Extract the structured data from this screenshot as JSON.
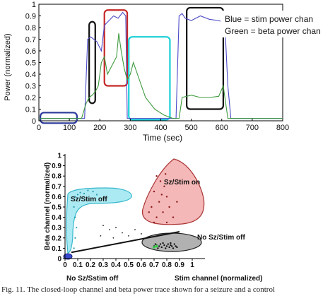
{
  "chart_data": [
    {
      "type": "line",
      "title": "",
      "xlabel": "Time (sec)",
      "ylabel": "Power (normalized)",
      "xlim": [
        0,
        800
      ],
      "ylim": [
        0,
        1
      ],
      "xticks": [
        "0",
        "100",
        "200",
        "300",
        "400",
        "500",
        "600",
        "700",
        "800"
      ],
      "yticks": [
        "0",
        "0.1",
        "0.2",
        "0.3",
        "0.4",
        "0.5",
        "0.6",
        "0.7",
        "0.8",
        "0.9",
        "1"
      ],
      "grid": false,
      "legend_text": [
        "Blue = stim power chan",
        "Green = beta power chan"
      ],
      "colors": {
        "blue": "#4a4ac8",
        "green": "#3f9a3f"
      },
      "series": [
        {
          "color": "blue",
          "x": [
            0,
            150,
            160,
            170,
            190,
            205,
            215,
            230,
            245,
            260,
            275,
            285,
            290,
            300,
            400,
            420,
            440,
            450,
            460,
            470,
            480,
            500,
            530,
            560,
            590,
            600,
            610,
            620,
            630,
            650,
            700,
            800
          ],
          "y": [
            0.02,
            0.02,
            0.7,
            0.72,
            0.68,
            0.6,
            0.82,
            0.86,
            0.9,
            0.88,
            0.93,
            0.9,
            0.02,
            0.02,
            0.02,
            0.02,
            0.02,
            0.02,
            0.9,
            0.92,
            0.88,
            0.86,
            0.9,
            0.87,
            0.86,
            0.85,
            0.84,
            0.3,
            0.02,
            0.02,
            0.02,
            0.02
          ]
        },
        {
          "color": "green",
          "x": [
            0,
            140,
            155,
            165,
            175,
            185,
            195,
            205,
            215,
            225,
            235,
            245,
            255,
            262,
            270,
            280,
            290,
            300,
            310,
            330,
            350,
            380,
            410,
            440,
            460,
            470,
            500,
            530,
            560,
            590,
            605,
            620,
            630,
            700,
            800
          ],
          "y": [
            0.02,
            0.02,
            0.15,
            0.2,
            0.22,
            0.25,
            0.3,
            0.5,
            0.55,
            0.4,
            0.45,
            0.5,
            0.55,
            0.75,
            0.6,
            0.45,
            0.35,
            0.4,
            0.5,
            0.35,
            0.2,
            0.1,
            0.05,
            0.02,
            0.02,
            0.2,
            0.22,
            0.2,
            0.2,
            0.21,
            0.3,
            0.02,
            0.02,
            0.02,
            0.02
          ]
        }
      ],
      "boxes": [
        {
          "color": "#2b3a9a",
          "x0": 5,
          "x1": 125,
          "y0": -0.02,
          "y1": 0.07
        },
        {
          "color": "#111111",
          "x0": 165,
          "x1": 185,
          "y0": 0.15,
          "y1": 0.85
        },
        {
          "color": "#c62828",
          "x0": 215,
          "x1": 290,
          "y0": 0.3,
          "y1": 0.95
        },
        {
          "color": "#18d0d8",
          "x0": 295,
          "x1": 430,
          "y0": 0.01,
          "y1": 0.72
        },
        {
          "color": "#111111",
          "x0": 485,
          "x1": 605,
          "y0": 0.1,
          "y1": 0.97
        }
      ]
    },
    {
      "type": "scatter",
      "title": "",
      "xlabel": "Stim channel (normalized)",
      "ylabel": "Beta channel (normalized)",
      "xlim": [
        0,
        1.0
      ],
      "ylim": [
        0,
        1.0
      ],
      "xticks": [
        "0",
        "0.1",
        "0.2",
        "0.3",
        "0.4",
        "0.5",
        "0.6",
        "0.7",
        "0.8",
        "0.9",
        "1"
      ],
      "yticks": [
        "0",
        "0.1",
        "0.2",
        "0.3",
        "0.4",
        "0.5",
        "0.6",
        "0.7",
        "0.8",
        "0.9",
        "1"
      ],
      "annotations": [
        "Sz/Stim off",
        "Sz/Stim on",
        "No Sz/Stim off",
        "No Sz/Sstim off"
      ],
      "regions": [
        {
          "label": "Sz/Stim off",
          "color": "#5ad3e6"
        },
        {
          "label": "Sz/Stim on",
          "color": "#e57373"
        },
        {
          "label": "No Sz/Stim off",
          "color": "#9e9e9e"
        },
        {
          "label": "No Sz/Sstim off",
          "color": "#3a4bd0"
        }
      ],
      "points_red": [
        [
          0.72,
          0.8
        ],
        [
          0.75,
          0.75
        ],
        [
          0.7,
          0.65
        ],
        [
          0.78,
          0.7
        ],
        [
          0.8,
          0.6
        ],
        [
          0.74,
          0.55
        ],
        [
          0.68,
          0.5
        ],
        [
          0.82,
          0.5
        ],
        [
          0.77,
          0.45
        ],
        [
          0.72,
          0.4
        ],
        [
          0.85,
          0.4
        ],
        [
          0.7,
          0.35
        ],
        [
          0.8,
          0.35
        ],
        [
          0.88,
          0.55
        ],
        [
          0.66,
          0.45
        ],
        [
          0.79,
          0.82
        ],
        [
          0.76,
          0.62
        ]
      ],
      "points_black": [
        [
          0.7,
          0.12
        ],
        [
          0.72,
          0.13
        ],
        [
          0.74,
          0.12
        ],
        [
          0.75,
          0.14
        ],
        [
          0.76,
          0.11
        ],
        [
          0.78,
          0.13
        ],
        [
          0.8,
          0.12
        ],
        [
          0.81,
          0.14
        ],
        [
          0.82,
          0.11
        ],
        [
          0.83,
          0.13
        ],
        [
          0.84,
          0.12
        ],
        [
          0.86,
          0.14
        ],
        [
          0.87,
          0.12
        ],
        [
          0.77,
          0.15
        ],
        [
          0.79,
          0.1
        ],
        [
          0.85,
          0.1
        ],
        [
          0.73,
          0.1
        ],
        [
          0.88,
          0.11
        ],
        [
          0.71,
          0.14
        ],
        [
          0.83,
          0.15
        ]
      ],
      "points_green": [
        [
          0.7,
          0.11
        ],
        [
          0.72,
          0.12
        ]
      ],
      "points_scatter": [
        [
          0.3,
          0.32
        ],
        [
          0.35,
          0.28
        ],
        [
          0.4,
          0.3
        ],
        [
          0.45,
          0.25
        ],
        [
          0.5,
          0.22
        ],
        [
          0.38,
          0.2
        ],
        [
          0.55,
          0.28
        ],
        [
          0.6,
          0.24
        ],
        [
          0.28,
          0.22
        ]
      ],
      "points_cyan": [
        [
          0.08,
          0.6
        ],
        [
          0.1,
          0.62
        ],
        [
          0.12,
          0.64
        ],
        [
          0.15,
          0.63
        ],
        [
          0.18,
          0.66
        ],
        [
          0.22,
          0.65
        ],
        [
          0.25,
          0.62
        ],
        [
          0.07,
          0.5
        ],
        [
          0.08,
          0.4
        ],
        [
          0.09,
          0.3
        ],
        [
          0.08,
          0.2
        ],
        [
          0.07,
          0.1
        ]
      ],
      "fit_line": {
        "x": [
          0.05,
          0.9
        ],
        "y": [
          0.06,
          0.26
        ]
      }
    }
  ],
  "caption": "Fig. 11.   The closed-loop channel and beta power trace shown for a seizure and a control"
}
